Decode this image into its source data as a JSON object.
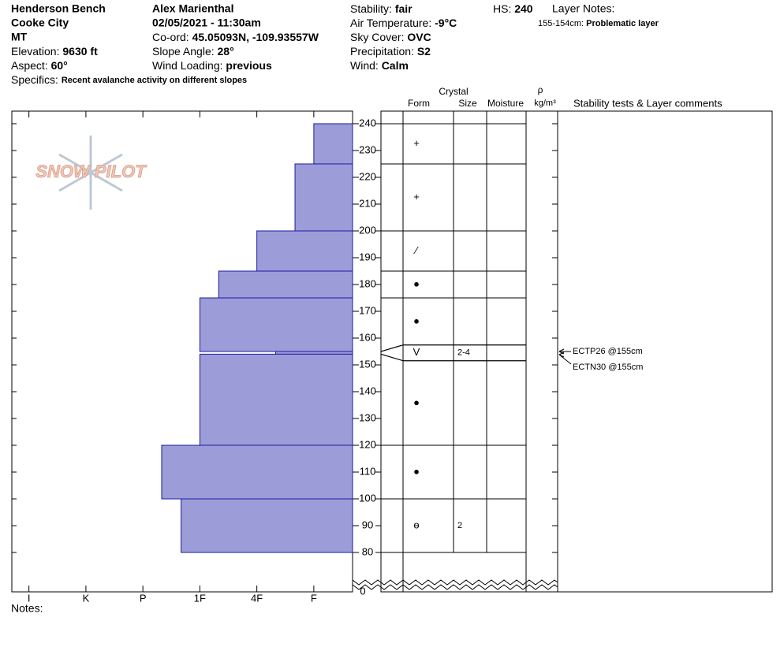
{
  "header": {
    "site": "Henderson Bench",
    "city": "Cooke City",
    "state": "MT",
    "elevation": {
      "label": "Elevation:",
      "value": "9630 ft"
    },
    "aspect": {
      "label": "Aspect:",
      "value": "60°"
    },
    "observer": "Alex Marienthal",
    "datetime": "02/05/2021 - 11:30am",
    "coord": {
      "label": "Co-ord:",
      "value": "45.05093N, -109.93557W"
    },
    "slope_angle": {
      "label": "Slope Angle:",
      "value": "28°"
    },
    "wind_loading": {
      "label": "Wind Loading:",
      "value": "previous"
    },
    "stability": {
      "label": "Stability:",
      "value": "fair"
    },
    "air_temperature": {
      "label": "Air Temperature:",
      "value": "-9°C"
    },
    "sky_cover": {
      "label": "Sky Cover:",
      "value": "OVC"
    },
    "precipitation": {
      "label": "Precipitation:",
      "value": "S2"
    },
    "wind": {
      "label": "Wind:",
      "value": "Calm"
    },
    "hs": {
      "label": "HS:",
      "value": "240"
    },
    "layer_notes": {
      "label": "Layer Notes:",
      "range": "155-154cm:",
      "note": "Problematic layer"
    },
    "specifics": {
      "label": "Specifics:",
      "value": "Recent avalanche activity on different slopes"
    },
    "logo": "SNOW PILOT"
  },
  "columns": {
    "crystal": "Crystal",
    "form": "Form",
    "size": "Size",
    "moisture": "Moisture",
    "density_symbol": "ρ",
    "density_unit": "kg/m³",
    "comments": "Stability tests & Layer comments"
  },
  "notes": "Notes:",
  "chart_data": {
    "type": "snow-profile",
    "color": "#9c9cd9",
    "edge_color": "#1c1ca0",
    "ylim": [
      65.3,
      244.7
    ],
    "yticks": [
      80,
      90,
      100,
      110,
      120,
      130,
      140,
      150,
      160,
      170,
      180,
      190,
      200,
      210,
      220,
      230,
      240
    ],
    "y_break_label": "0",
    "xlim": [
      6.3,
      0.32
    ],
    "xticks": [
      {
        "value": 6,
        "label": "I"
      },
      {
        "value": 5,
        "label": "K"
      },
      {
        "value": 4,
        "label": "P"
      },
      {
        "value": 3,
        "label": "1F"
      },
      {
        "value": 2,
        "label": "4F"
      },
      {
        "value": 1,
        "label": "F"
      }
    ],
    "layers": [
      {
        "top": 240,
        "bottom": 225,
        "hardness": 1,
        "form": "+"
      },
      {
        "top": 225,
        "bottom": 200,
        "hardness": 1.33,
        "form": "+"
      },
      {
        "top": 200,
        "bottom": 185,
        "hardness": 2,
        "form": "⁄"
      },
      {
        "top": 185,
        "bottom": 175,
        "hardness": 2.67,
        "form": "●"
      },
      {
        "top": 175,
        "bottom": 155,
        "hardness": 3,
        "form": "●"
      },
      {
        "top": 155,
        "bottom": 154,
        "hardness": 1.67,
        "form": "V",
        "size": "2-4"
      },
      {
        "top": 154,
        "bottom": 120,
        "hardness": 3,
        "form": "●"
      },
      {
        "top": 120,
        "bottom": 100,
        "hardness": 3.67,
        "form": "●"
      },
      {
        "top": 100,
        "bottom": 80,
        "hardness": 3.33,
        "form": "ө",
        "size": "2"
      }
    ],
    "tests": [
      {
        "text": "ECTP26 @155cm",
        "depth": 155
      },
      {
        "text": "ECTN30 @155cm",
        "depth": 155
      }
    ]
  }
}
